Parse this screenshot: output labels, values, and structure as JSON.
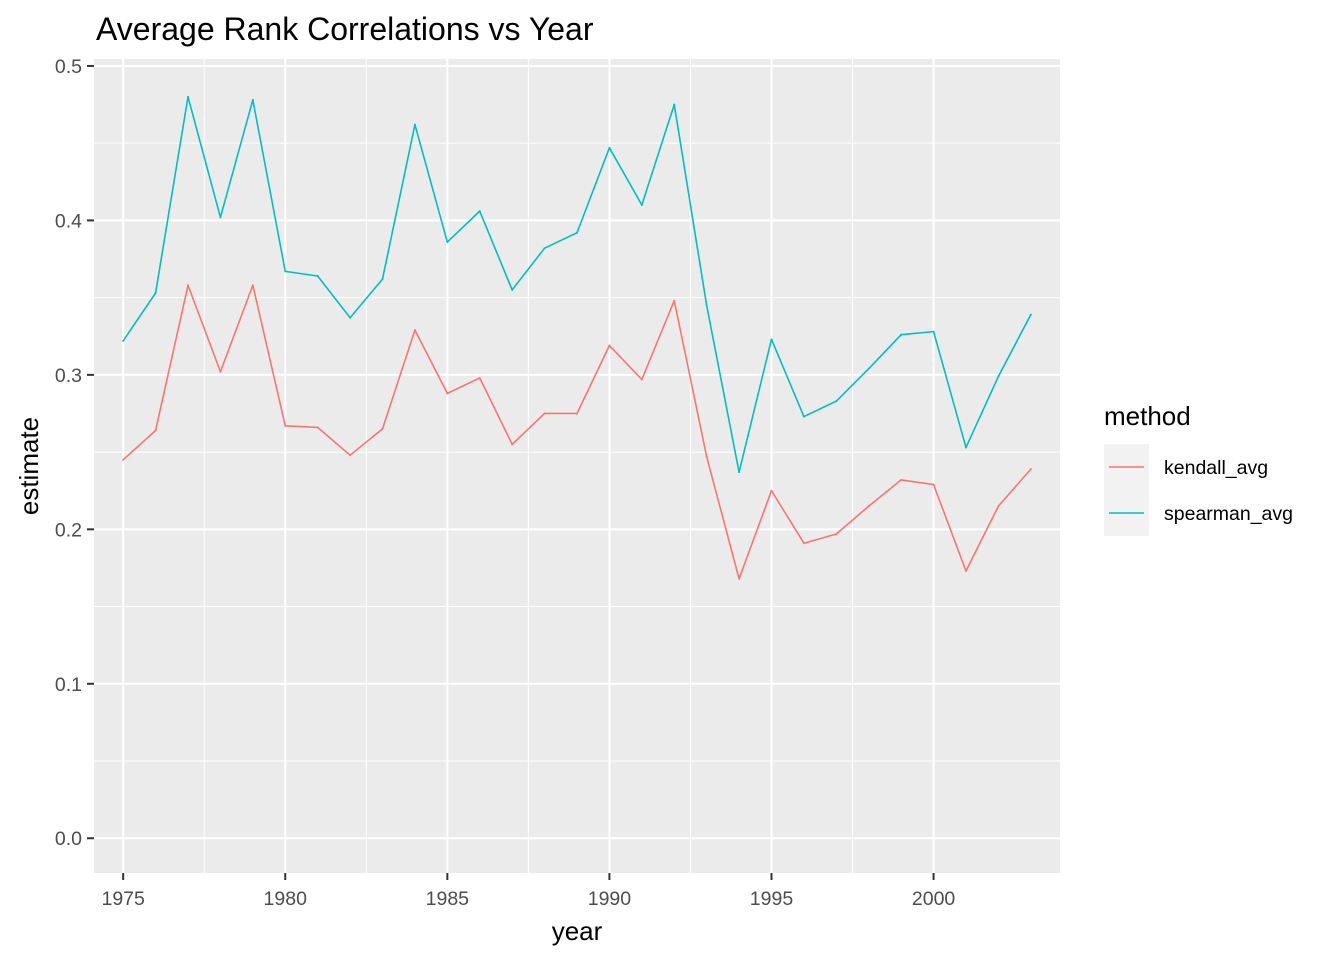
{
  "chart_data": {
    "type": "line",
    "title": "Average Rank Correlations vs Year",
    "xlabel": "year",
    "ylabel": "estimate",
    "xlim": [
      1974.1,
      2003.9
    ],
    "ylim": [
      -0.0225,
      0.5045
    ],
    "x_ticks": [
      1975,
      1980,
      1985,
      1990,
      1995,
      2000
    ],
    "y_ticks": [
      0.0,
      0.1,
      0.2,
      0.3,
      0.4,
      0.5
    ],
    "y_tick_labels": [
      "0.0",
      "0.1",
      "0.2",
      "0.3",
      "0.4",
      "0.5"
    ],
    "grid": true,
    "legend": {
      "title": "method",
      "position": "right"
    },
    "series": [
      {
        "name": "kendall_avg",
        "color": "#F8766D",
        "x": [
          1975,
          1976,
          1977,
          1978,
          1979,
          1980,
          1981,
          1982,
          1983,
          1984,
          1985,
          1986,
          1987,
          1988,
          1989,
          1990,
          1991,
          1992,
          1993,
          1994,
          1995,
          1996,
          1997,
          1998,
          1999,
          2000,
          2001,
          2002,
          2003
        ],
        "values": [
          0.245,
          0.264,
          0.358,
          0.302,
          0.358,
          0.267,
          0.266,
          0.248,
          0.265,
          0.329,
          0.288,
          0.298,
          0.255,
          0.275,
          0.275,
          0.319,
          0.297,
          0.348,
          0.247,
          0.168,
          0.225,
          0.191,
          0.197,
          0.215,
          0.232,
          0.229,
          0.173,
          0.215,
          0.239
        ]
      },
      {
        "name": "spearman_avg",
        "color": "#00BFC4",
        "x": [
          1975,
          1976,
          1977,
          1978,
          1979,
          1980,
          1981,
          1982,
          1983,
          1984,
          1985,
          1986,
          1987,
          1988,
          1989,
          1990,
          1991,
          1992,
          1993,
          1994,
          1995,
          1996,
          1997,
          1998,
          1999,
          2000,
          2001,
          2002,
          2003
        ],
        "values": [
          0.322,
          0.353,
          0.48,
          0.402,
          0.478,
          0.367,
          0.364,
          0.337,
          0.362,
          0.462,
          0.386,
          0.406,
          0.355,
          0.382,
          0.392,
          0.447,
          0.41,
          0.475,
          0.345,
          0.237,
          0.323,
          0.273,
          0.283,
          0.304,
          0.326,
          0.328,
          0.253,
          0.299,
          0.339
        ]
      }
    ]
  }
}
